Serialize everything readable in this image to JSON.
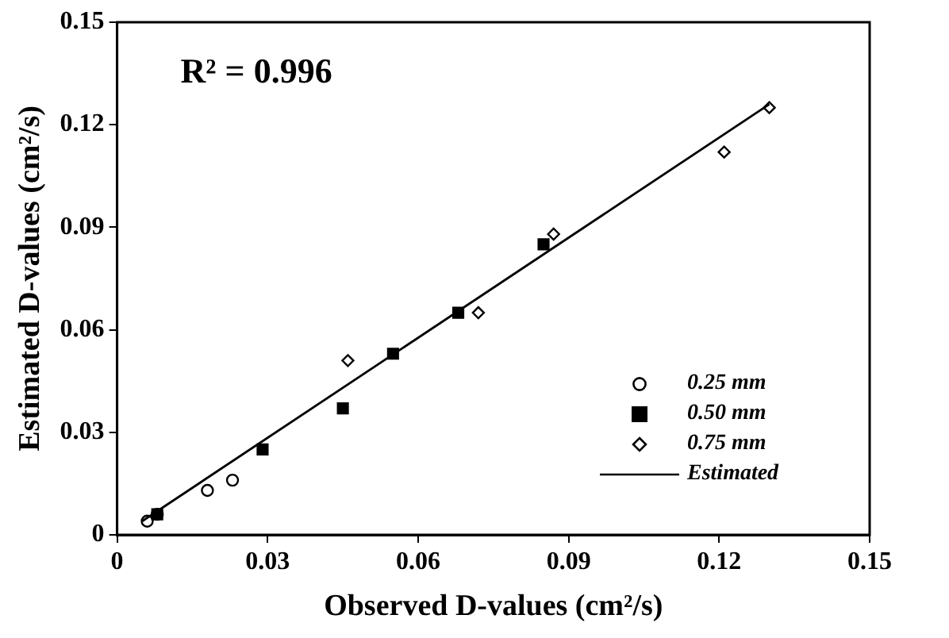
{
  "chart_data": {
    "type": "scatter",
    "xlabel": "Observed D-values (cm²/s)",
    "ylabel": "Estimated D-values (cm²/s)",
    "annotations": [
      "R² = 0.996"
    ],
    "xlim": [
      0,
      0.15
    ],
    "ylim": [
      0,
      0.15
    ],
    "xticks": [
      0,
      0.03,
      0.06,
      0.09,
      0.12,
      0.15
    ],
    "yticks": [
      0,
      0.03,
      0.06,
      0.09,
      0.12,
      0.15
    ],
    "grid": false,
    "legend": "bottom right",
    "series": [
      {
        "name": "0.25 mm",
        "marker": "circle",
        "color": "#000000",
        "x": [
          0.006,
          0.008,
          0.018,
          0.023
        ],
        "values": [
          0.004,
          0.006,
          0.013,
          0.016
        ]
      },
      {
        "name": "0.50 mm",
        "marker": "square",
        "color": "#000000",
        "x": [
          0.008,
          0.029,
          0.045,
          0.055,
          0.068,
          0.085
        ],
        "values": [
          0.006,
          0.025,
          0.037,
          0.053,
          0.065,
          0.085
        ]
      },
      {
        "name": "0.75 mm",
        "marker": "diamond",
        "color": "#000000",
        "x": [
          0.046,
          0.072,
          0.087,
          0.121,
          0.13
        ],
        "values": [
          0.051,
          0.065,
          0.088,
          0.112,
          0.125
        ]
      },
      {
        "name": "Estimated",
        "type": "line",
        "marker": "none",
        "line_style": "solid",
        "color": "#000000",
        "x": [
          0.005,
          0.13
        ],
        "values": [
          0.004,
          0.126
        ]
      }
    ]
  }
}
